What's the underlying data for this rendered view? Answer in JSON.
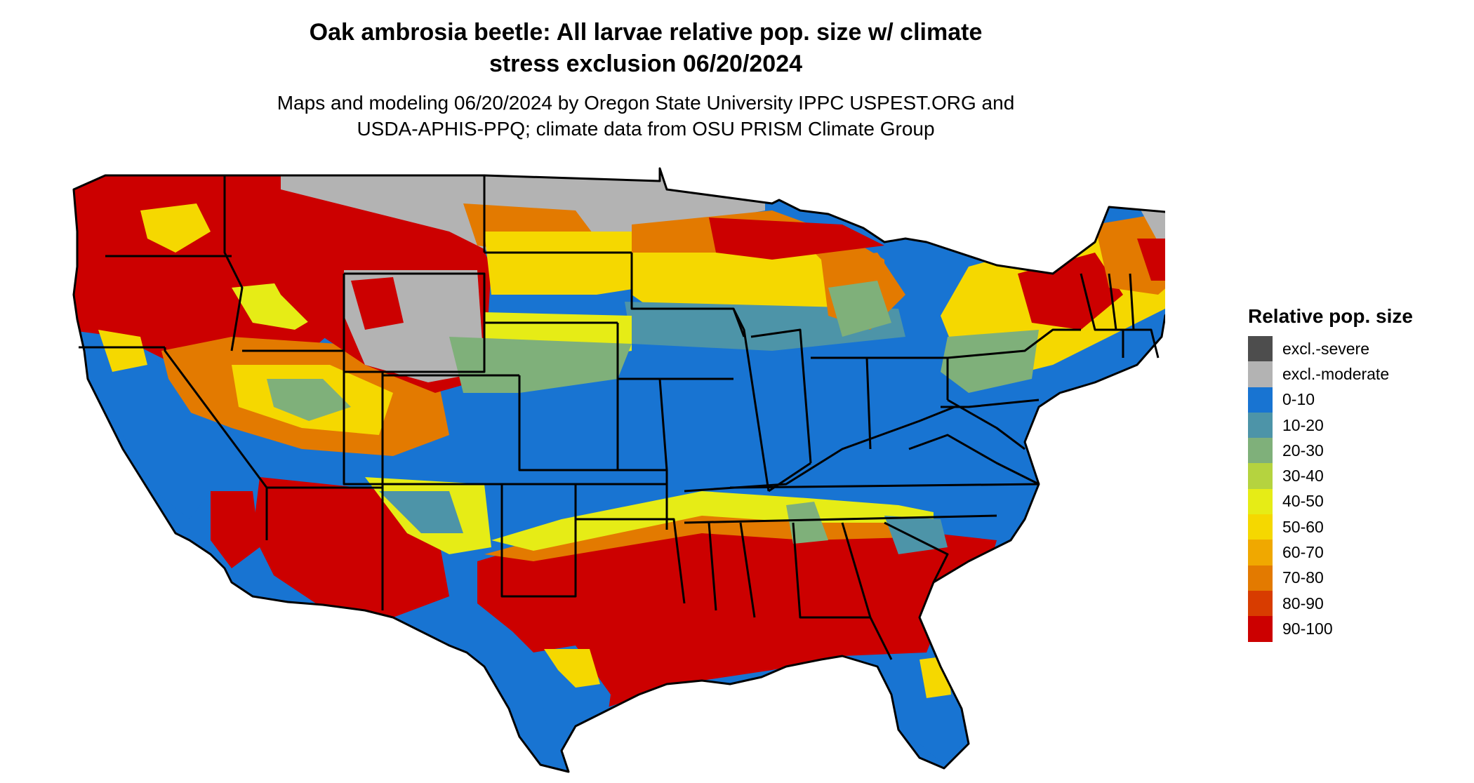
{
  "title_line1": "Oak ambrosia beetle: All larvae relative pop. size w/ climate",
  "title_line2": "stress exclusion 06/20/2024",
  "subtitle_line1": "Maps and modeling 06/20/2024 by Oregon State University IPPC USPEST.ORG and",
  "subtitle_line2": "USDA-APHIS-PPQ; climate data from OSU PRISM Climate Group",
  "legend": {
    "title": "Relative pop. size",
    "items": [
      {
        "label": "excl.-severe",
        "color": "#4d4d4d"
      },
      {
        "label": "excl.-moderate",
        "color": "#b3b3b3"
      },
      {
        "label": "0-10",
        "color": "#1874d2"
      },
      {
        "label": "10-20",
        "color": "#4d94a8"
      },
      {
        "label": "20-30",
        "color": "#7fb07a"
      },
      {
        "label": "30-40",
        "color": "#b5d33f"
      },
      {
        "label": "40-50",
        "color": "#e6ec16"
      },
      {
        "label": "50-60",
        "color": "#f5d800"
      },
      {
        "label": "60-70",
        "color": "#f0a800"
      },
      {
        "label": "70-80",
        "color": "#e37a00"
      },
      {
        "label": "80-90",
        "color": "#d83c00"
      },
      {
        "label": "90-100",
        "color": "#cc0000"
      }
    ]
  }
}
